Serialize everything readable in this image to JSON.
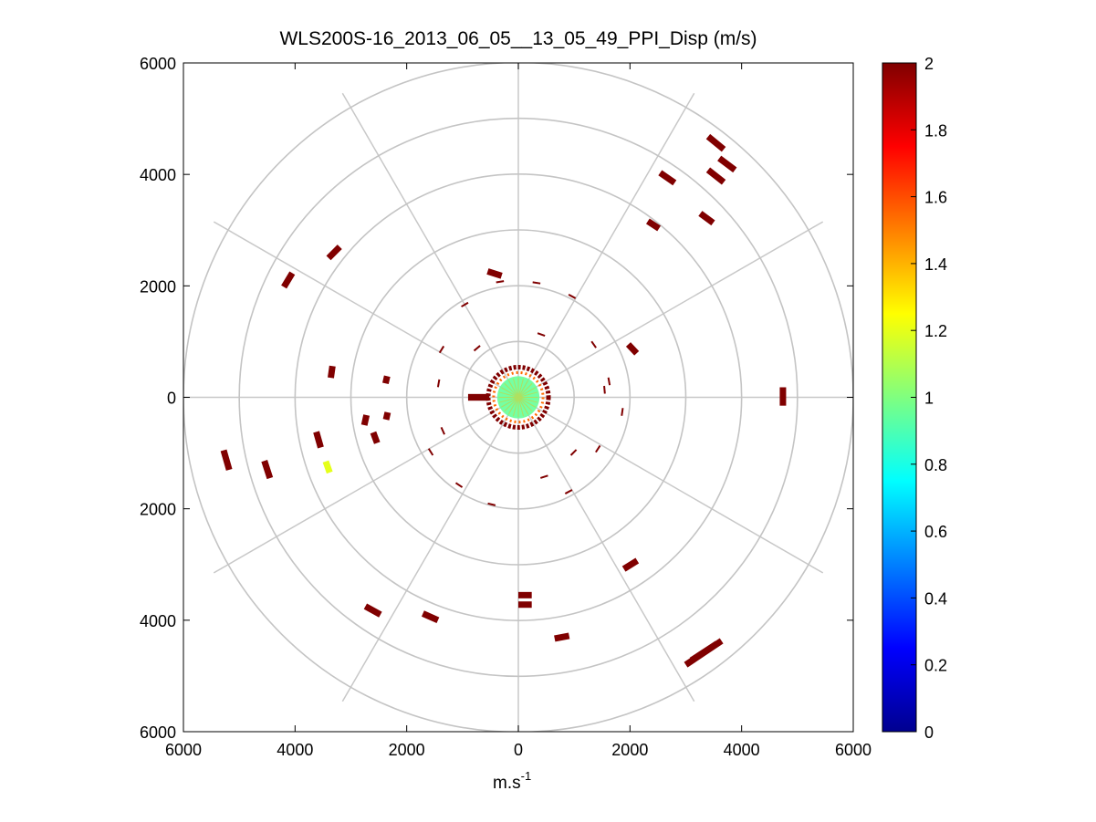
{
  "chart_data": {
    "type": "scatter",
    "subtype": "polar-ppi",
    "title": "WLS200S-16_2013_06_05__13_05_49_PPI_Disp (m/s)",
    "xlabel": "m.s",
    "xlabel_sup": "-1",
    "ylabel": "",
    "xlim": [
      -6000,
      6000
    ],
    "ylim": [
      -6000,
      6000
    ],
    "x_ticks": [
      -6000,
      -4000,
      -2000,
      0,
      2000,
      4000,
      6000
    ],
    "x_tick_labels": [
      "6000",
      "4000",
      "2000",
      "0",
      "2000",
      "4000",
      "6000"
    ],
    "y_ticks": [
      6000,
      4000,
      2000,
      0,
      -2000,
      -4000,
      -6000
    ],
    "y_tick_labels": [
      "6000",
      "4000",
      "2000",
      "0",
      "2000",
      "4000",
      "6000"
    ],
    "rings": [
      1000,
      2000,
      3000,
      4000,
      5000,
      6000
    ],
    "spoke_angles_deg": [
      0,
      30,
      60,
      90,
      120,
      150,
      180,
      210,
      240,
      270,
      300,
      330
    ],
    "colorbar": {
      "min": 0,
      "max": 2,
      "ticks": [
        0,
        0.2,
        0.4,
        0.6,
        0.8,
        1,
        1.2,
        1.4,
        1.6,
        1.8,
        2
      ],
      "tick_labels": [
        "0",
        "0.2",
        "0.4",
        "0.6",
        "0.8",
        "1",
        "1.2",
        "1.4",
        "1.6",
        "1.8",
        "2"
      ],
      "colormap": "jet"
    },
    "segments": [
      {
        "x1": 3400,
        "y1": 4680,
        "x2": 3680,
        "y2": 4450,
        "value": 2
      },
      {
        "x1": 3600,
        "y1": 4290,
        "x2": 3880,
        "y2": 4080,
        "value": 2
      },
      {
        "x1": 3400,
        "y1": 4080,
        "x2": 3680,
        "y2": 3860,
        "value": 2
      },
      {
        "x1": 2540,
        "y1": 4030,
        "x2": 2800,
        "y2": 3850,
        "value": 2
      },
      {
        "x1": 3260,
        "y1": 3300,
        "x2": 3490,
        "y2": 3130,
        "value": 2
      },
      {
        "x1": 2320,
        "y1": 3160,
        "x2": 2520,
        "y2": 3030,
        "value": 2
      },
      {
        "x1": -3200,
        "y1": 2700,
        "x2": -3400,
        "y2": 2500,
        "value": 2
      },
      {
        "x1": -4050,
        "y1": 2230,
        "x2": -4200,
        "y2": 1980,
        "value": 2
      },
      {
        "x1": -550,
        "y1": 2260,
        "x2": -300,
        "y2": 2180,
        "value": 2
      },
      {
        "x1": 1970,
        "y1": 950,
        "x2": 2120,
        "y2": 790,
        "value": 2
      },
      {
        "x1": 4740,
        "y1": 180,
        "x2": 4740,
        "y2": -150,
        "value": 2
      },
      {
        "x1": -3330,
        "y1": 560,
        "x2": -3360,
        "y2": 350,
        "value": 2
      },
      {
        "x1": -2350,
        "y1": 380,
        "x2": -2380,
        "y2": 250,
        "value": 2
      },
      {
        "x1": -2720,
        "y1": -320,
        "x2": -2760,
        "y2": -500,
        "value": 2
      },
      {
        "x1": -2340,
        "y1": -270,
        "x2": -2370,
        "y2": -400,
        "value": 2
      },
      {
        "x1": -3620,
        "y1": -620,
        "x2": -3540,
        "y2": -900,
        "value": 2
      },
      {
        "x1": -2600,
        "y1": -630,
        "x2": -2530,
        "y2": -820,
        "value": 2
      },
      {
        "x1": -3450,
        "y1": -1150,
        "x2": -3380,
        "y2": -1350,
        "value": 1.2
      },
      {
        "x1": -5280,
        "y1": -950,
        "x2": -5180,
        "y2": -1300,
        "value": 2
      },
      {
        "x1": -4550,
        "y1": -1140,
        "x2": -4450,
        "y2": -1450,
        "value": 2
      },
      {
        "x1": 1890,
        "y1": -3080,
        "x2": 2130,
        "y2": -2930,
        "value": 2
      },
      {
        "x1": -2740,
        "y1": -3750,
        "x2": -2470,
        "y2": -3900,
        "value": 2
      },
      {
        "x1": -1710,
        "y1": -3880,
        "x2": -1440,
        "y2": -4000,
        "value": 2
      },
      {
        "x1": 0,
        "y1": -3550,
        "x2": 240,
        "y2": -3550,
        "value": 2
      },
      {
        "x1": 0,
        "y1": -3720,
        "x2": 240,
        "y2": -3720,
        "value": 2
      },
      {
        "x1": 650,
        "y1": -4330,
        "x2": 910,
        "y2": -4280,
        "value": 2
      },
      {
        "x1": 3000,
        "y1": -4800,
        "x2": 3640,
        "y2": -4370,
        "value": 2
      },
      {
        "x1": 3100,
        "y1": -4720,
        "x2": 3560,
        "y2": -4420,
        "value": 2
      }
    ],
    "sparse_points": [
      {
        "r": 2100,
        "theta_deg": 99,
        "value": 2
      },
      {
        "r": 2080,
        "theta_deg": 81,
        "value": 2
      },
      {
        "r": 2050,
        "theta_deg": 62,
        "value": 2
      },
      {
        "r": 1920,
        "theta_deg": 120,
        "value": 2
      },
      {
        "r": 1650,
        "theta_deg": 35,
        "value": 2
      },
      {
        "r": 1620,
        "theta_deg": 148,
        "value": 2
      },
      {
        "r": 1650,
        "theta_deg": 10,
        "value": 2
      },
      {
        "r": 1880,
        "theta_deg": -8,
        "value": 2
      },
      {
        "r": 1850,
        "theta_deg": -148,
        "value": 2
      },
      {
        "r": 1900,
        "theta_deg": -124,
        "value": 2
      },
      {
        "r": 1980,
        "theta_deg": -104,
        "value": 2
      },
      {
        "r": 1920,
        "theta_deg": -62,
        "value": 2
      },
      {
        "r": 1700,
        "theta_deg": -33,
        "value": 2
      },
      {
        "r": 1500,
        "theta_deg": -72,
        "value": 2
      },
      {
        "r": 1480,
        "theta_deg": -156,
        "value": 2
      },
      {
        "r": 1150,
        "theta_deg": 130,
        "value": 2
      },
      {
        "r": 1450,
        "theta_deg": 170,
        "value": 2
      },
      {
        "r": 1200,
        "theta_deg": 70,
        "value": 2
      },
      {
        "r": 1550,
        "theta_deg": 5,
        "value": 2
      },
      {
        "r": 1400,
        "theta_deg": -45,
        "value": 2
      }
    ],
    "core": {
      "r_inner": 0,
      "r_outer": 540,
      "value_center": 0.95,
      "value_ring": 2
    }
  }
}
